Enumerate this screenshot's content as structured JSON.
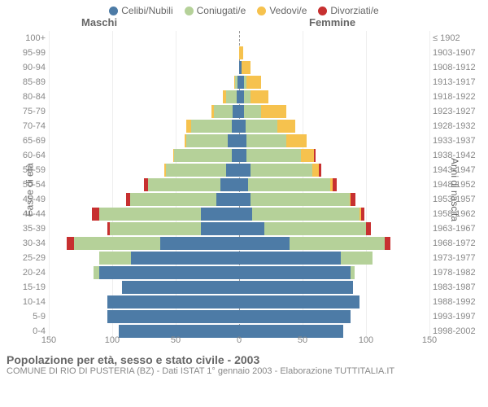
{
  "legend": [
    {
      "label": "Celibi/Nubili",
      "color": "#4d7ba6"
    },
    {
      "label": "Coniugati/e",
      "color": "#b5d199"
    },
    {
      "label": "Vedovi/e",
      "color": "#f6c24e"
    },
    {
      "label": "Divorziati/e",
      "color": "#c73030"
    }
  ],
  "headers": {
    "male": "Maschi",
    "female": "Femmine"
  },
  "y_left_label": "Fasce di età",
  "y_right_label": "Anni di nascita",
  "title": "Popolazione per età, sesso e stato civile - 2003",
  "subtitle": "COMUNE DI RIO DI PUSTERIA (BZ) - Dati ISTAT 1° gennaio 2003 - Elaborazione TUTTITALIA.IT",
  "x_ticks": [
    150,
    100,
    50,
    0,
    50,
    100,
    150
  ],
  "x_max": 150,
  "colors": {
    "celibi": "#4d7ba6",
    "coniugati": "#b5d199",
    "vedovi": "#f6c24e",
    "divorziati": "#c73030",
    "grid": "#eeeeee",
    "centerline": "#999999",
    "background": "#ffffff"
  },
  "rows": [
    {
      "age": "100+",
      "birth": "≤ 1902",
      "m": [
        0,
        0,
        0,
        0
      ],
      "f": [
        0,
        0,
        0,
        0
      ]
    },
    {
      "age": "95-99",
      "birth": "1903-1907",
      "m": [
        0,
        0,
        0,
        0
      ],
      "f": [
        0,
        0,
        3,
        0
      ]
    },
    {
      "age": "90-94",
      "birth": "1908-1912",
      "m": [
        0,
        0,
        0,
        0
      ],
      "f": [
        2,
        0,
        7,
        0
      ]
    },
    {
      "age": "85-89",
      "birth": "1913-1917",
      "m": [
        1,
        2,
        1,
        0
      ],
      "f": [
        4,
        2,
        11,
        0
      ]
    },
    {
      "age": "80-84",
      "birth": "1918-1922",
      "m": [
        2,
        8,
        3,
        0
      ],
      "f": [
        4,
        5,
        14,
        0
      ]
    },
    {
      "age": "75-79",
      "birth": "1923-1927",
      "m": [
        5,
        15,
        2,
        0
      ],
      "f": [
        4,
        13,
        20,
        0
      ]
    },
    {
      "age": "70-74",
      "birth": "1928-1932",
      "m": [
        6,
        32,
        4,
        0
      ],
      "f": [
        5,
        25,
        14,
        0
      ]
    },
    {
      "age": "65-69",
      "birth": "1933-1937",
      "m": [
        9,
        33,
        1,
        0
      ],
      "f": [
        6,
        31,
        16,
        0
      ]
    },
    {
      "age": "60-64",
      "birth": "1938-1942",
      "m": [
        6,
        45,
        1,
        0
      ],
      "f": [
        6,
        43,
        10,
        1
      ]
    },
    {
      "age": "55-59",
      "birth": "1943-1947",
      "m": [
        10,
        48,
        1,
        0
      ],
      "f": [
        9,
        49,
        5,
        2
      ]
    },
    {
      "age": "50-54",
      "birth": "1948-1952",
      "m": [
        15,
        57,
        0,
        3
      ],
      "f": [
        7,
        65,
        2,
        3
      ]
    },
    {
      "age": "45-49",
      "birth": "1953-1957",
      "m": [
        18,
        68,
        0,
        3
      ],
      "f": [
        9,
        78,
        1,
        4
      ]
    },
    {
      "age": "40-44",
      "birth": "1958-1962",
      "m": [
        30,
        80,
        0,
        6
      ],
      "f": [
        10,
        85,
        1,
        3
      ]
    },
    {
      "age": "35-39",
      "birth": "1963-1967",
      "m": [
        30,
        72,
        0,
        2
      ],
      "f": [
        20,
        80,
        0,
        4
      ]
    },
    {
      "age": "30-34",
      "birth": "1968-1972",
      "m": [
        62,
        68,
        0,
        6
      ],
      "f": [
        40,
        75,
        0,
        4
      ]
    },
    {
      "age": "25-29",
      "birth": "1973-1977",
      "m": [
        85,
        25,
        0,
        0
      ],
      "f": [
        80,
        25,
        0,
        0
      ]
    },
    {
      "age": "20-24",
      "birth": "1978-1982",
      "m": [
        110,
        5,
        0,
        0
      ],
      "f": [
        88,
        3,
        0,
        0
      ]
    },
    {
      "age": "15-19",
      "birth": "1983-1987",
      "m": [
        92,
        0,
        0,
        0
      ],
      "f": [
        90,
        0,
        0,
        0
      ]
    },
    {
      "age": "10-14",
      "birth": "1988-1992",
      "m": [
        104,
        0,
        0,
        0
      ],
      "f": [
        95,
        0,
        0,
        0
      ]
    },
    {
      "age": "5-9",
      "birth": "1993-1997",
      "m": [
        104,
        0,
        0,
        0
      ],
      "f": [
        88,
        0,
        0,
        0
      ]
    },
    {
      "age": "0-4",
      "birth": "1998-2002",
      "m": [
        95,
        0,
        0,
        0
      ],
      "f": [
        82,
        0,
        0,
        0
      ]
    }
  ]
}
